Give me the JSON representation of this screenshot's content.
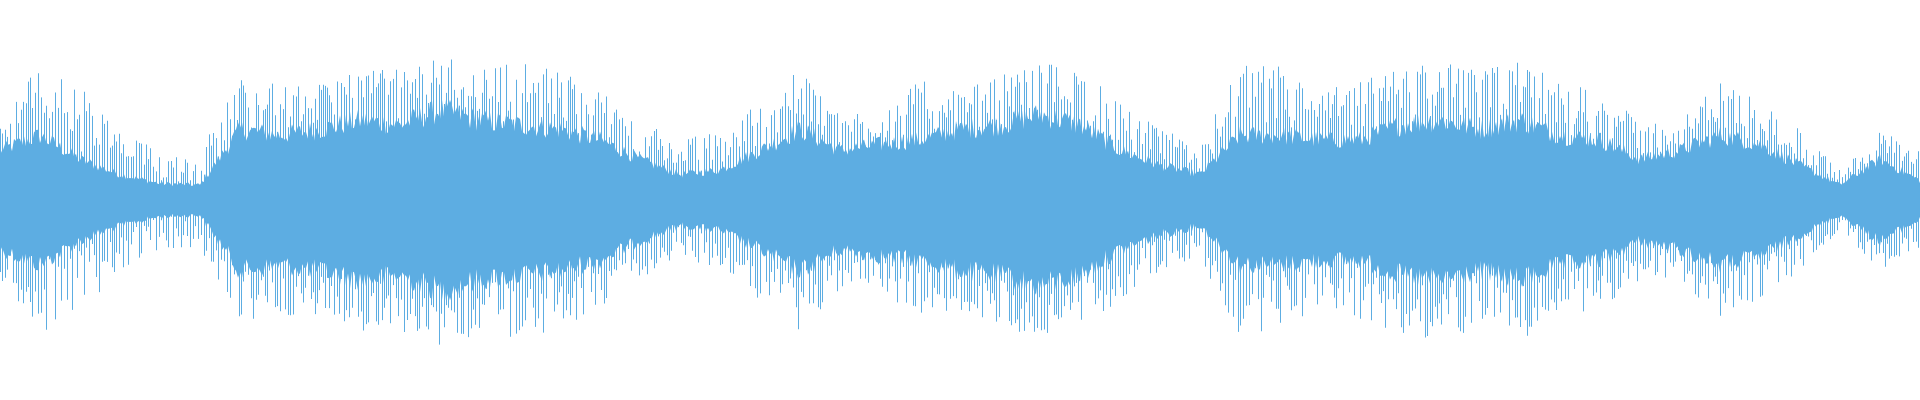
{
  "chart_data": {
    "type": "area",
    "subtype": "audio-waveform",
    "title": "",
    "xlabel": "",
    "ylabel": "",
    "axes_visible": false,
    "grid": false,
    "legend": "none",
    "color": "#5dade2",
    "background": "#ffffff",
    "ylim": [
      -1,
      1
    ],
    "symmetric": true,
    "peak_amplitude": [
      0.53,
      0.93,
      0.77,
      0.47,
      0.33,
      0.33,
      0.83,
      0.77,
      0.77,
      0.9,
      0.87,
      0.97,
      0.9,
      0.93,
      0.87,
      0.73,
      0.53,
      0.4,
      0.47,
      0.67,
      0.87,
      0.6,
      0.6,
      0.8,
      0.73,
      0.83,
      0.93,
      0.87,
      0.67,
      0.47,
      0.4,
      0.9,
      0.9,
      0.73,
      0.8,
      0.9,
      0.93,
      0.87,
      0.93,
      0.8,
      0.73,
      0.53,
      0.53,
      0.8,
      0.67,
      0.47,
      0.2,
      0.47,
      0.33
    ],
    "body_amplitude": [
      0.33,
      0.43,
      0.27,
      0.17,
      0.11,
      0.1,
      0.47,
      0.43,
      0.47,
      0.53,
      0.5,
      0.6,
      0.53,
      0.5,
      0.47,
      0.4,
      0.27,
      0.17,
      0.2,
      0.33,
      0.47,
      0.33,
      0.37,
      0.4,
      0.47,
      0.5,
      0.57,
      0.5,
      0.33,
      0.23,
      0.17,
      0.43,
      0.43,
      0.4,
      0.4,
      0.5,
      0.53,
      0.47,
      0.53,
      0.43,
      0.4,
      0.27,
      0.33,
      0.43,
      0.37,
      0.23,
      0.1,
      0.27,
      0.13
    ]
  }
}
